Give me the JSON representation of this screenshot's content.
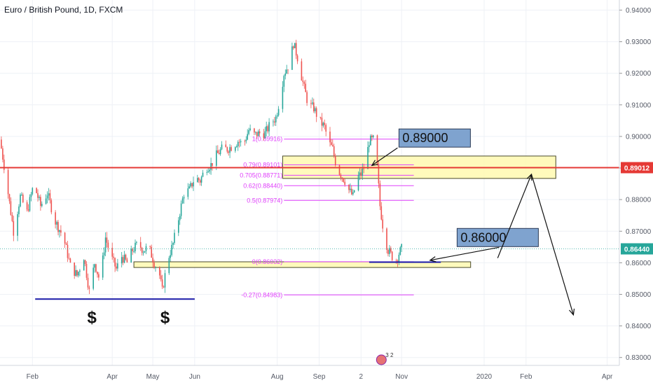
{
  "symbol_title": "Euro / British Pound, 1D, FXCM",
  "colors": {
    "up": "#26a69a",
    "down": "#ef5350",
    "fib": "#e040fb",
    "hline": "#e53935",
    "support": "#1a1aa8",
    "zone_fill": "#fff9b0",
    "zone_border": "#4a4a2a",
    "callout_fill": "#7fa3cf",
    "current": "#26a69a",
    "grid": "#eef1f6",
    "axis_text": "#555a66"
  },
  "chart_data": {
    "type": "candlestick",
    "price_axis": {
      "range": [
        0.8275,
        0.9432
      ],
      "ticks": [
        "0.94000",
        "0.93000",
        "0.92000",
        "0.91000",
        "0.90000",
        "0.89000",
        "0.88000",
        "0.87000",
        "0.86000",
        "0.85000",
        "0.84000",
        "0.83000"
      ]
    },
    "time_axis": {
      "range": [
        "2019-01-08",
        "2020-04-10"
      ],
      "ticks": [
        {
          "label": "Feb",
          "date": "2019-02-01"
        },
        {
          "label": "Apr",
          "date": "2019-04-01"
        },
        {
          "label": "May",
          "date": "2019-05-01"
        },
        {
          "label": "Jun",
          "date": "2019-06-01"
        },
        {
          "label": "Aug",
          "date": "2019-08-01"
        },
        {
          "label": "Sep",
          "date": "2019-09-01"
        },
        {
          "label": "2",
          "date": "2019-10-02"
        },
        {
          "label": "Nov",
          "date": "2019-11-01"
        },
        {
          "label": "2020",
          "date": "2020-01-01"
        },
        {
          "label": "Feb",
          "date": "2020-02-01"
        },
        {
          "label": "Apr",
          "date": "2020-04-01"
        }
      ]
    },
    "price_path": [
      [
        "2019-01-08",
        0.899
      ],
      [
        "2019-01-12",
        0.888
      ],
      [
        "2019-01-18",
        0.87
      ],
      [
        "2019-01-23",
        0.881
      ],
      [
        "2019-01-28",
        0.876
      ],
      [
        "2019-02-02",
        0.885
      ],
      [
        "2019-02-07",
        0.878
      ],
      [
        "2019-02-12",
        0.882
      ],
      [
        "2019-02-18",
        0.873
      ],
      [
        "2019-02-24",
        0.868
      ],
      [
        "2019-03-01",
        0.859
      ],
      [
        "2019-03-06",
        0.856
      ],
      [
        "2019-03-11",
        0.862
      ],
      [
        "2019-03-15",
        0.851
      ],
      [
        "2019-03-19",
        0.86
      ],
      [
        "2019-03-23",
        0.854
      ],
      [
        "2019-03-27",
        0.868
      ],
      [
        "2019-03-31",
        0.862
      ],
      [
        "2019-04-04",
        0.858
      ],
      [
        "2019-04-08",
        0.862
      ],
      [
        "2019-04-12",
        0.86
      ],
      [
        "2019-04-16",
        0.864
      ],
      [
        "2019-04-20",
        0.866
      ],
      [
        "2019-04-24",
        0.864
      ],
      [
        "2019-04-28",
        0.865
      ],
      [
        "2019-05-02",
        0.86
      ],
      [
        "2019-05-06",
        0.856
      ],
      [
        "2019-05-08",
        0.851
      ],
      [
        "2019-05-12",
        0.861
      ],
      [
        "2019-05-16",
        0.866
      ],
      [
        "2019-05-20",
        0.874
      ],
      [
        "2019-05-24",
        0.882
      ],
      [
        "2019-05-28",
        0.883
      ],
      [
        "2019-06-01",
        0.887
      ],
      [
        "2019-06-05",
        0.886
      ],
      [
        "2019-06-09",
        0.89
      ],
      [
        "2019-06-13",
        0.891
      ],
      [
        "2019-06-17",
        0.894
      ],
      [
        "2019-06-21",
        0.896
      ],
      [
        "2019-06-25",
        0.896
      ],
      [
        "2019-06-29",
        0.897
      ],
      [
        "2019-07-03",
        0.8985
      ],
      [
        "2019-07-07",
        0.8975
      ],
      [
        "2019-07-11",
        0.902
      ],
      [
        "2019-07-15",
        0.9005
      ],
      [
        "2019-07-19",
        0.901
      ],
      [
        "2019-07-23",
        0.901
      ],
      [
        "2019-07-27",
        0.904
      ],
      [
        "2019-07-31",
        0.906
      ],
      [
        "2019-08-03",
        0.912
      ],
      [
        "2019-08-06",
        0.92
      ],
      [
        "2019-08-10",
        0.923
      ],
      [
        "2019-08-13",
        0.9295
      ],
      [
        "2019-08-16",
        0.925
      ],
      [
        "2019-08-20",
        0.917
      ],
      [
        "2019-08-24",
        0.91
      ],
      [
        "2019-08-28",
        0.909
      ],
      [
        "2019-09-01",
        0.905
      ],
      [
        "2019-09-05",
        0.903
      ],
      [
        "2019-09-08",
        0.898
      ],
      [
        "2019-09-11",
        0.896
      ],
      [
        "2019-09-14",
        0.89
      ],
      [
        "2019-09-17",
        0.888
      ],
      [
        "2019-09-20",
        0.886
      ],
      [
        "2019-09-23",
        0.883
      ],
      [
        "2019-09-26",
        0.881
      ],
      [
        "2019-09-29",
        0.887
      ],
      [
        "2019-10-02",
        0.888
      ],
      [
        "2019-10-05",
        0.891
      ],
      [
        "2019-10-08",
        0.8985
      ],
      [
        "2019-10-11",
        0.899
      ],
      [
        "2019-10-14",
        0.89
      ],
      [
        "2019-10-16",
        0.878
      ],
      [
        "2019-10-19",
        0.869
      ],
      [
        "2019-10-22",
        0.864
      ],
      [
        "2019-10-25",
        0.862
      ],
      [
        "2019-10-28",
        0.861
      ],
      [
        "2019-10-30",
        0.863
      ],
      [
        "2019-11-01",
        0.8644
      ]
    ],
    "current_price": 0.8644,
    "current_price_label": "0.86440",
    "horizontal_line": {
      "price": 0.89012,
      "label": "0.89012"
    },
    "fibonacci": {
      "start_date": "2019-08-06",
      "end_date": "2019-11-10",
      "levels": [
        {
          "price": 0.89916,
          "label": "1(0.89916)"
        },
        {
          "price": 0.89101,
          "label": "0.79(0.89101)"
        },
        {
          "price": 0.88771,
          "label": "0.705(0.88771)"
        },
        {
          "price": 0.8844,
          "label": "0.62(0.88440)"
        },
        {
          "price": 0.87974,
          "label": "0.5(0.87974)"
        },
        {
          "price": 0.86032,
          "label": "0(0.86032)"
        },
        {
          "price": 0.84983,
          "label": "-0.27(0.84983)"
        }
      ]
    },
    "resistance_zone": {
      "start_date": "2019-08-05",
      "end_date": "2020-02-23",
      "high": 0.8938,
      "low": 0.8867
    },
    "support_zone": {
      "start_date": "2019-04-17",
      "end_date": "2019-12-22",
      "high": 0.8603,
      "low": 0.8585
    },
    "support_lines": [
      {
        "start_date": "2019-02-03",
        "end_date": "2019-06-01",
        "price": 0.8485
      },
      {
        "start_date": "2019-10-08",
        "end_date": "2019-11-30",
        "price": 0.8602
      }
    ],
    "dollar_markers": [
      {
        "date": "2019-03-17",
        "text": "$"
      },
      {
        "date": "2019-05-10",
        "text": "$"
      }
    ],
    "callouts": [
      {
        "label": "0.89000",
        "date": "2019-10-30",
        "price": 0.8995
      },
      {
        "label": "0.86000",
        "date": "2019-12-12",
        "price": 0.868
      }
    ],
    "projection_path": [
      [
        "2020-01-11",
        0.8615
      ],
      [
        "2020-02-05",
        0.888
      ],
      [
        "2020-03-07",
        0.8435
      ]
    ],
    "events_badge": "3 2"
  }
}
